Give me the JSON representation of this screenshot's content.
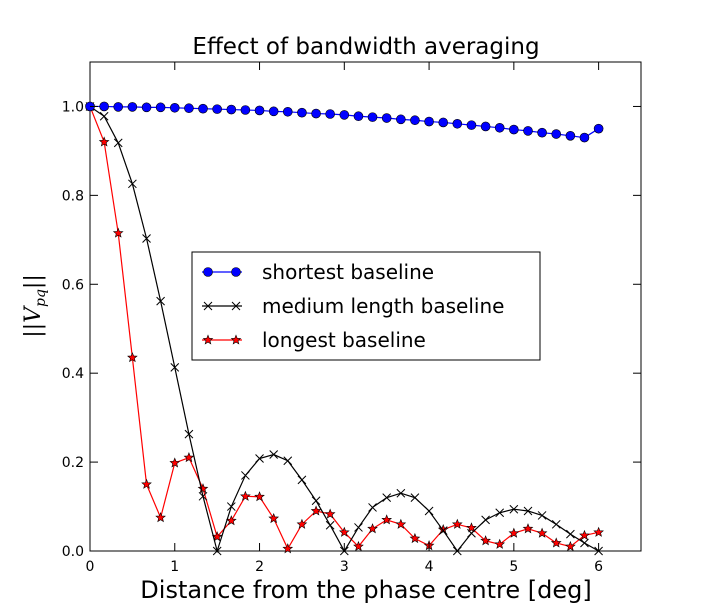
{
  "chart_data": {
    "type": "line",
    "title": "Effect of bandwidth averaging",
    "xlabel": "Distance from the phase centre [deg]",
    "ylabel": "||V_pq||",
    "xlim": [
      0,
      6.5
    ],
    "ylim": [
      0,
      1.1
    ],
    "xticks": [
      0,
      1,
      2,
      3,
      4,
      5,
      6
    ],
    "xtick_labels": [
      "0",
      "1",
      "2",
      "3",
      "4",
      "5",
      "6"
    ],
    "yticks": [
      0.0,
      0.2,
      0.4,
      0.6,
      0.8,
      1.0
    ],
    "ytick_labels": [
      "0.0",
      "0.2",
      "0.4",
      "0.6",
      "0.8",
      "1.0"
    ],
    "grid": false,
    "legend_position": "center",
    "series": [
      {
        "name": "shortest baseline",
        "color": "#0000ff",
        "marker": "circle",
        "x": [
          0.0,
          0.167,
          0.333,
          0.5,
          0.667,
          0.833,
          1.0,
          1.167,
          1.333,
          1.5,
          1.667,
          1.833,
          2.0,
          2.167,
          2.333,
          2.5,
          2.667,
          2.833,
          3.0,
          3.167,
          3.333,
          3.5,
          3.667,
          3.833,
          4.0,
          4.167,
          4.333,
          4.5,
          4.667,
          4.833,
          5.0,
          5.167,
          5.333,
          5.5,
          5.667,
          5.833,
          6.0
        ],
        "y": [
          1.0,
          1.0,
          0.999,
          0.999,
          0.998,
          0.998,
          0.997,
          0.996,
          0.995,
          0.994,
          0.993,
          0.992,
          0.991,
          0.989,
          0.988,
          0.986,
          0.984,
          0.983,
          0.981,
          0.978,
          0.976,
          0.974,
          0.971,
          0.969,
          0.966,
          0.964,
          0.961,
          0.958,
          0.955,
          0.952,
          0.948,
          0.945,
          0.941,
          0.938,
          0.934,
          0.93,
          0.95
        ]
      },
      {
        "name": "medium length baseline",
        "color": "#000000",
        "marker": "x",
        "x": [
          0.0,
          0.167,
          0.333,
          0.5,
          0.667,
          0.833,
          1.0,
          1.167,
          1.333,
          1.5,
          1.667,
          1.833,
          2.0,
          2.167,
          2.333,
          2.5,
          2.667,
          2.833,
          3.0,
          3.167,
          3.333,
          3.5,
          3.667,
          3.833,
          4.0,
          4.167,
          4.333,
          4.5,
          4.667,
          4.833,
          5.0,
          5.167,
          5.333,
          5.5,
          5.667,
          5.833,
          6.0
        ],
        "y": [
          1.0,
          0.978,
          0.918,
          0.826,
          0.703,
          0.562,
          0.413,
          0.263,
          0.123,
          0.0,
          0.1,
          0.17,
          0.208,
          0.217,
          0.203,
          0.16,
          0.113,
          0.058,
          0.0,
          0.053,
          0.098,
          0.12,
          0.13,
          0.12,
          0.09,
          0.046,
          0.0,
          0.04,
          0.07,
          0.086,
          0.094,
          0.09,
          0.08,
          0.06,
          0.038,
          0.018,
          0.0
        ]
      },
      {
        "name": "longest baseline",
        "color": "#ff0000",
        "marker": "star",
        "x": [
          0.0,
          0.167,
          0.333,
          0.5,
          0.667,
          0.833,
          1.0,
          1.167,
          1.333,
          1.5,
          1.667,
          1.833,
          2.0,
          2.167,
          2.333,
          2.5,
          2.667,
          2.833,
          3.0,
          3.167,
          3.333,
          3.5,
          3.667,
          3.833,
          4.0,
          4.167,
          4.333,
          4.5,
          4.667,
          4.833,
          5.0,
          5.167,
          5.333,
          5.5,
          5.667,
          5.833,
          6.0
        ],
        "y": [
          1.0,
          0.92,
          0.715,
          0.435,
          0.15,
          0.075,
          0.198,
          0.21,
          0.14,
          0.032,
          0.068,
          0.123,
          0.122,
          0.073,
          0.005,
          0.06,
          0.09,
          0.083,
          0.042,
          0.01,
          0.05,
          0.07,
          0.06,
          0.028,
          0.012,
          0.048,
          0.06,
          0.052,
          0.023,
          0.015,
          0.04,
          0.05,
          0.04,
          0.018,
          0.01,
          0.035,
          0.042
        ]
      }
    ]
  }
}
